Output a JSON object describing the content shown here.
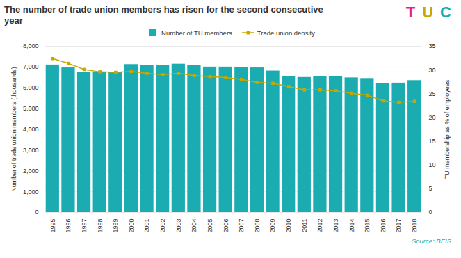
{
  "chart_data": {
    "type": "bar",
    "title": "The number of trade union members has risen for the second consecutive year",
    "categories": [
      "1995",
      "1996",
      "1997",
      "1998",
      "1999",
      "2000",
      "2001",
      "2002",
      "2003",
      "2004",
      "2005",
      "2006",
      "2007",
      "2008",
      "2009",
      "2010",
      "2011",
      "2012",
      "2013",
      "2014",
      "2015",
      "2016",
      "2017",
      "2018"
    ],
    "series": [
      {
        "name": "Number of TU members",
        "type": "bar",
        "color": "#1AACB0",
        "values": [
          7100,
          6960,
          6760,
          6750,
          6750,
          7120,
          7080,
          7070,
          7140,
          7070,
          7000,
          7000,
          6980,
          6960,
          6810,
          6540,
          6500,
          6560,
          6540,
          6480,
          6450,
          6200,
          6230,
          6350
        ]
      },
      {
        "name": "Trade union density",
        "type": "line",
        "color": "#C8A800",
        "marker": "square",
        "axis": "y2",
        "values": [
          32.4,
          31.4,
          30.1,
          29.6,
          29.5,
          29.7,
          29.3,
          29.0,
          29.3,
          28.8,
          28.6,
          28.4,
          28.0,
          27.4,
          27.2,
          26.5,
          25.8,
          25.8,
          25.6,
          25.1,
          24.7,
          23.5,
          23.2,
          23.4
        ]
      }
    ],
    "ylabel": "Number of trade union members (thousands)",
    "y2label": "TU membership as % of employees",
    "ylim": [
      0,
      8000
    ],
    "yticks": [
      0,
      {
        "value": 1000,
        "label": "1,000"
      },
      {
        "value": 2000,
        "label": "2,000"
      },
      {
        "value": 3000,
        "label": "3,000"
      },
      {
        "value": 4000,
        "label": "4,000"
      },
      {
        "value": 5000,
        "label": "5,000"
      },
      {
        "value": 6000,
        "label": "6,000"
      },
      {
        "value": 7000,
        "label": "7,000"
      },
      {
        "value": 8000,
        "label": "8,000"
      }
    ],
    "y2lim": [
      0,
      35
    ],
    "y2ticks": [
      0,
      5,
      10,
      15,
      20,
      25,
      30,
      35
    ],
    "grid": true,
    "legend": "top",
    "source": {
      "text": "Source: BEIS",
      "color": "#1AACB0"
    },
    "logo": [
      {
        "text": "T",
        "color": "#E91E8C"
      },
      {
        "text": "U",
        "color": "#C8A800"
      },
      {
        "text": "C",
        "color": "#1AACB0"
      }
    ]
  }
}
